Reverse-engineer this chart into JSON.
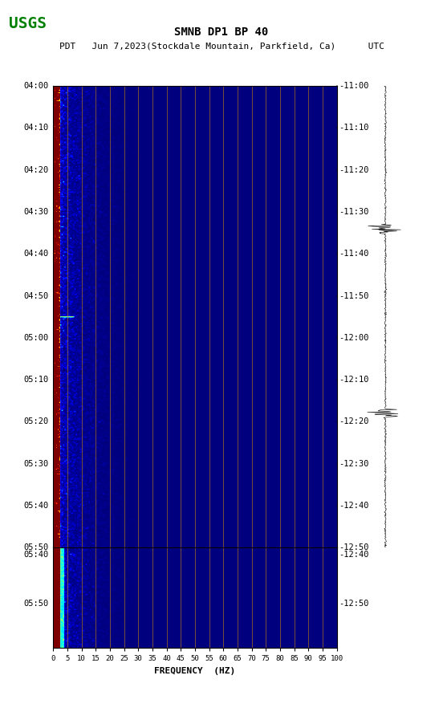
{
  "title_line1": "SMNB DP1 BP 40",
  "title_line2": "PDT   Jun 7,2023(Stockdale Mountain, Parkfield, Ca)      UTC",
  "left_times": [
    "04:00",
    "04:10",
    "04:20",
    "04:30",
    "04:40",
    "04:50",
    "05:00",
    "05:10",
    "05:20",
    "05:30",
    "05:40",
    "05:50"
  ],
  "right_times": [
    "11:00",
    "11:10",
    "11:20",
    "11:30",
    "11:40",
    "11:50",
    "12:00",
    "12:10",
    "12:20",
    "12:30",
    "12:40",
    "12:50"
  ],
  "freq_ticks": [
    0,
    5,
    10,
    15,
    20,
    25,
    30,
    35,
    40,
    45,
    50,
    55,
    60,
    65,
    70,
    75,
    80,
    85,
    90,
    95,
    100
  ],
  "xlabel": "FREQUENCY  (HZ)",
  "freq_min": 0,
  "freq_max": 100,
  "background_color": "#ffffff",
  "gap_color": "#000000",
  "vertical_line_color": "#cc8800",
  "vertical_line_freq": [
    5,
    10,
    15,
    20,
    25,
    30,
    35,
    40,
    45,
    50,
    55,
    60,
    65,
    70,
    75,
    80,
    85,
    90,
    95,
    100
  ],
  "fig_width": 5.52,
  "fig_height": 8.92,
  "dpi": 100
}
